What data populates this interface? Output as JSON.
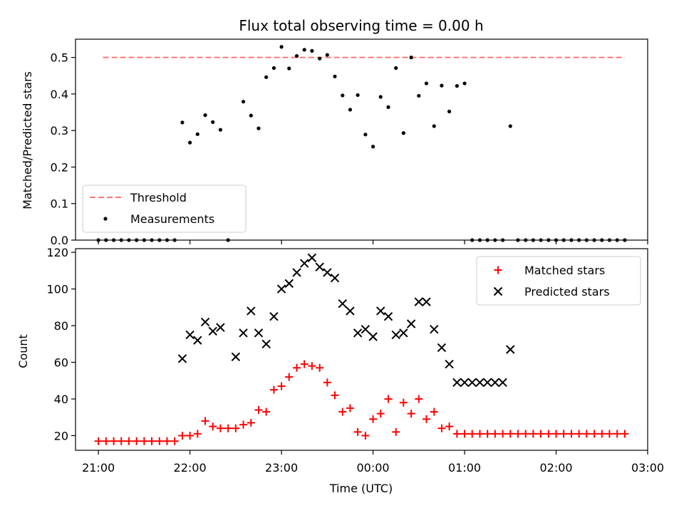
{
  "chart_data": [
    {
      "type": "scatter",
      "title": "Flux total observing time = 0.00 h",
      "xlabel": "",
      "ylabel": "Matched/Predicted stars",
      "ylim": [
        0,
        0.55
      ],
      "yticks": [
        0.0,
        0.1,
        0.2,
        0.3,
        0.4,
        0.5
      ],
      "x_unit": "hours since 21:00 UTC",
      "xlim": [
        -0.25,
        6.0
      ],
      "threshold": {
        "name": "Threshold",
        "value": 0.5,
        "x_range": [
          0.05,
          5.75
        ],
        "color": "#ff7777"
      },
      "legend": {
        "placement": "lower-left",
        "entries": [
          "Threshold",
          "Measurements"
        ]
      },
      "series": [
        {
          "name": "Measurements",
          "color": "#000000",
          "x": [
            0.0,
            0.083,
            0.167,
            0.25,
            0.333,
            0.417,
            0.5,
            0.583,
            0.667,
            0.75,
            0.833,
            0.917,
            1.0,
            1.083,
            1.167,
            1.25,
            1.333,
            1.417,
            1.583,
            1.667,
            1.75,
            1.833,
            1.917,
            2.0,
            2.083,
            2.167,
            2.25,
            2.333,
            2.417,
            2.5,
            2.583,
            2.667,
            2.75,
            2.833,
            2.917,
            3.0,
            3.083,
            3.167,
            3.25,
            3.333,
            3.417,
            3.5,
            3.583,
            3.667,
            3.75,
            3.833,
            3.917,
            4.0,
            4.083,
            4.167,
            4.25,
            4.333,
            4.417,
            4.5,
            4.583,
            4.667,
            4.75,
            4.833,
            4.917,
            5.0,
            5.083,
            5.167,
            5.25,
            5.333,
            5.417,
            5.5,
            5.583,
            5.667,
            5.75
          ],
          "y": [
            0,
            0,
            0,
            0,
            0,
            0,
            0,
            0,
            0,
            0,
            0,
            0.322,
            0.267,
            0.29,
            0.342,
            0.323,
            0.302,
            0,
            0.379,
            0.341,
            0.306,
            0.446,
            0.471,
            0.529,
            0.47,
            0.504,
            0.521,
            0.518,
            0.497,
            0.507,
            0.448,
            0.396,
            0.357,
            0.397,
            0.289,
            0.256,
            0.392,
            0.364,
            0.471,
            0.293,
            0.5,
            0.395,
            0.429,
            0.312,
            0.423,
            0.352,
            0.422,
            0.429,
            0,
            0,
            0,
            0,
            0,
            0.312,
            0,
            0,
            0,
            0,
            0,
            0,
            0,
            0,
            0,
            0,
            0,
            0,
            0,
            0,
            0
          ]
        }
      ]
    },
    {
      "type": "scatter",
      "title": "",
      "xlabel": "Time (UTC)",
      "ylabel": "Count",
      "ylim": [
        12,
        122
      ],
      "yticks": [
        20,
        40,
        60,
        80,
        100,
        120
      ],
      "x_unit": "hours since 21:00 UTC",
      "xlim": [
        -0.25,
        6.0
      ],
      "xticks": [
        0,
        1,
        2,
        3,
        4,
        5,
        6
      ],
      "xtick_labels": [
        "21:00",
        "22:00",
        "23:00",
        "00:00",
        "01:00",
        "02:00",
        "03:00"
      ],
      "legend": {
        "placement": "upper-right",
        "entries": [
          "Matched stars",
          "Predicted stars"
        ]
      },
      "series": [
        {
          "name": "Matched stars",
          "marker": "plus",
          "color": "#ff0000",
          "x": [
            0.0,
            0.083,
            0.167,
            0.25,
            0.333,
            0.417,
            0.5,
            0.583,
            0.667,
            0.75,
            0.833,
            0.917,
            1.0,
            1.083,
            1.167,
            1.25,
            1.333,
            1.417,
            1.5,
            1.583,
            1.667,
            1.75,
            1.833,
            1.917,
            2.0,
            2.083,
            2.167,
            2.25,
            2.333,
            2.417,
            2.5,
            2.583,
            2.667,
            2.75,
            2.833,
            2.917,
            3.0,
            3.083,
            3.167,
            3.25,
            3.333,
            3.417,
            3.5,
            3.583,
            3.667,
            3.75,
            3.833,
            3.917,
            4.0,
            4.083,
            4.167,
            4.25,
            4.333,
            4.417,
            4.5,
            4.583,
            4.667,
            4.75,
            4.833,
            4.917,
            5.0,
            5.083,
            5.167,
            5.25,
            5.333,
            5.417,
            5.5,
            5.583,
            5.667,
            5.75
          ],
          "y": [
            17,
            17,
            17,
            17,
            17,
            17,
            17,
            17,
            17,
            17,
            17,
            20,
            20,
            21,
            28,
            25,
            24,
            24,
            24,
            26,
            27,
            34,
            33,
            45,
            47,
            52,
            57,
            59,
            58,
            57,
            49,
            42,
            33,
            35,
            22,
            20,
            29,
            32,
            40,
            22,
            38,
            32,
            40,
            29,
            33,
            24,
            25,
            21,
            21,
            21,
            21,
            21,
            21,
            21,
            21,
            21,
            21,
            21,
            21,
            21,
            21,
            21,
            21,
            21,
            21,
            21,
            21,
            21,
            21,
            21
          ]
        },
        {
          "name": "Predicted stars",
          "marker": "x",
          "color": "#000000",
          "x": [
            0.917,
            1.0,
            1.083,
            1.167,
            1.25,
            1.333,
            1.5,
            1.583,
            1.667,
            1.75,
            1.833,
            1.917,
            2.0,
            2.083,
            2.167,
            2.25,
            2.333,
            2.417,
            2.5,
            2.583,
            2.667,
            2.75,
            2.833,
            2.917,
            3.0,
            3.083,
            3.167,
            3.25,
            3.333,
            3.417,
            3.5,
            3.583,
            3.667,
            3.75,
            3.833,
            3.917,
            4.0,
            4.083,
            4.167,
            4.25,
            4.333,
            4.417,
            4.5
          ],
          "y": [
            62,
            75,
            72,
            82,
            77,
            79,
            63,
            76,
            88,
            76,
            70,
            85,
            100,
            103,
            109,
            114,
            117,
            112,
            109,
            106,
            92,
            88,
            76,
            78,
            74,
            88,
            85,
            75,
            76,
            81,
            93,
            93,
            78,
            68,
            59,
            49,
            49,
            49,
            49,
            49,
            49,
            49,
            67
          ]
        }
      ]
    }
  ]
}
